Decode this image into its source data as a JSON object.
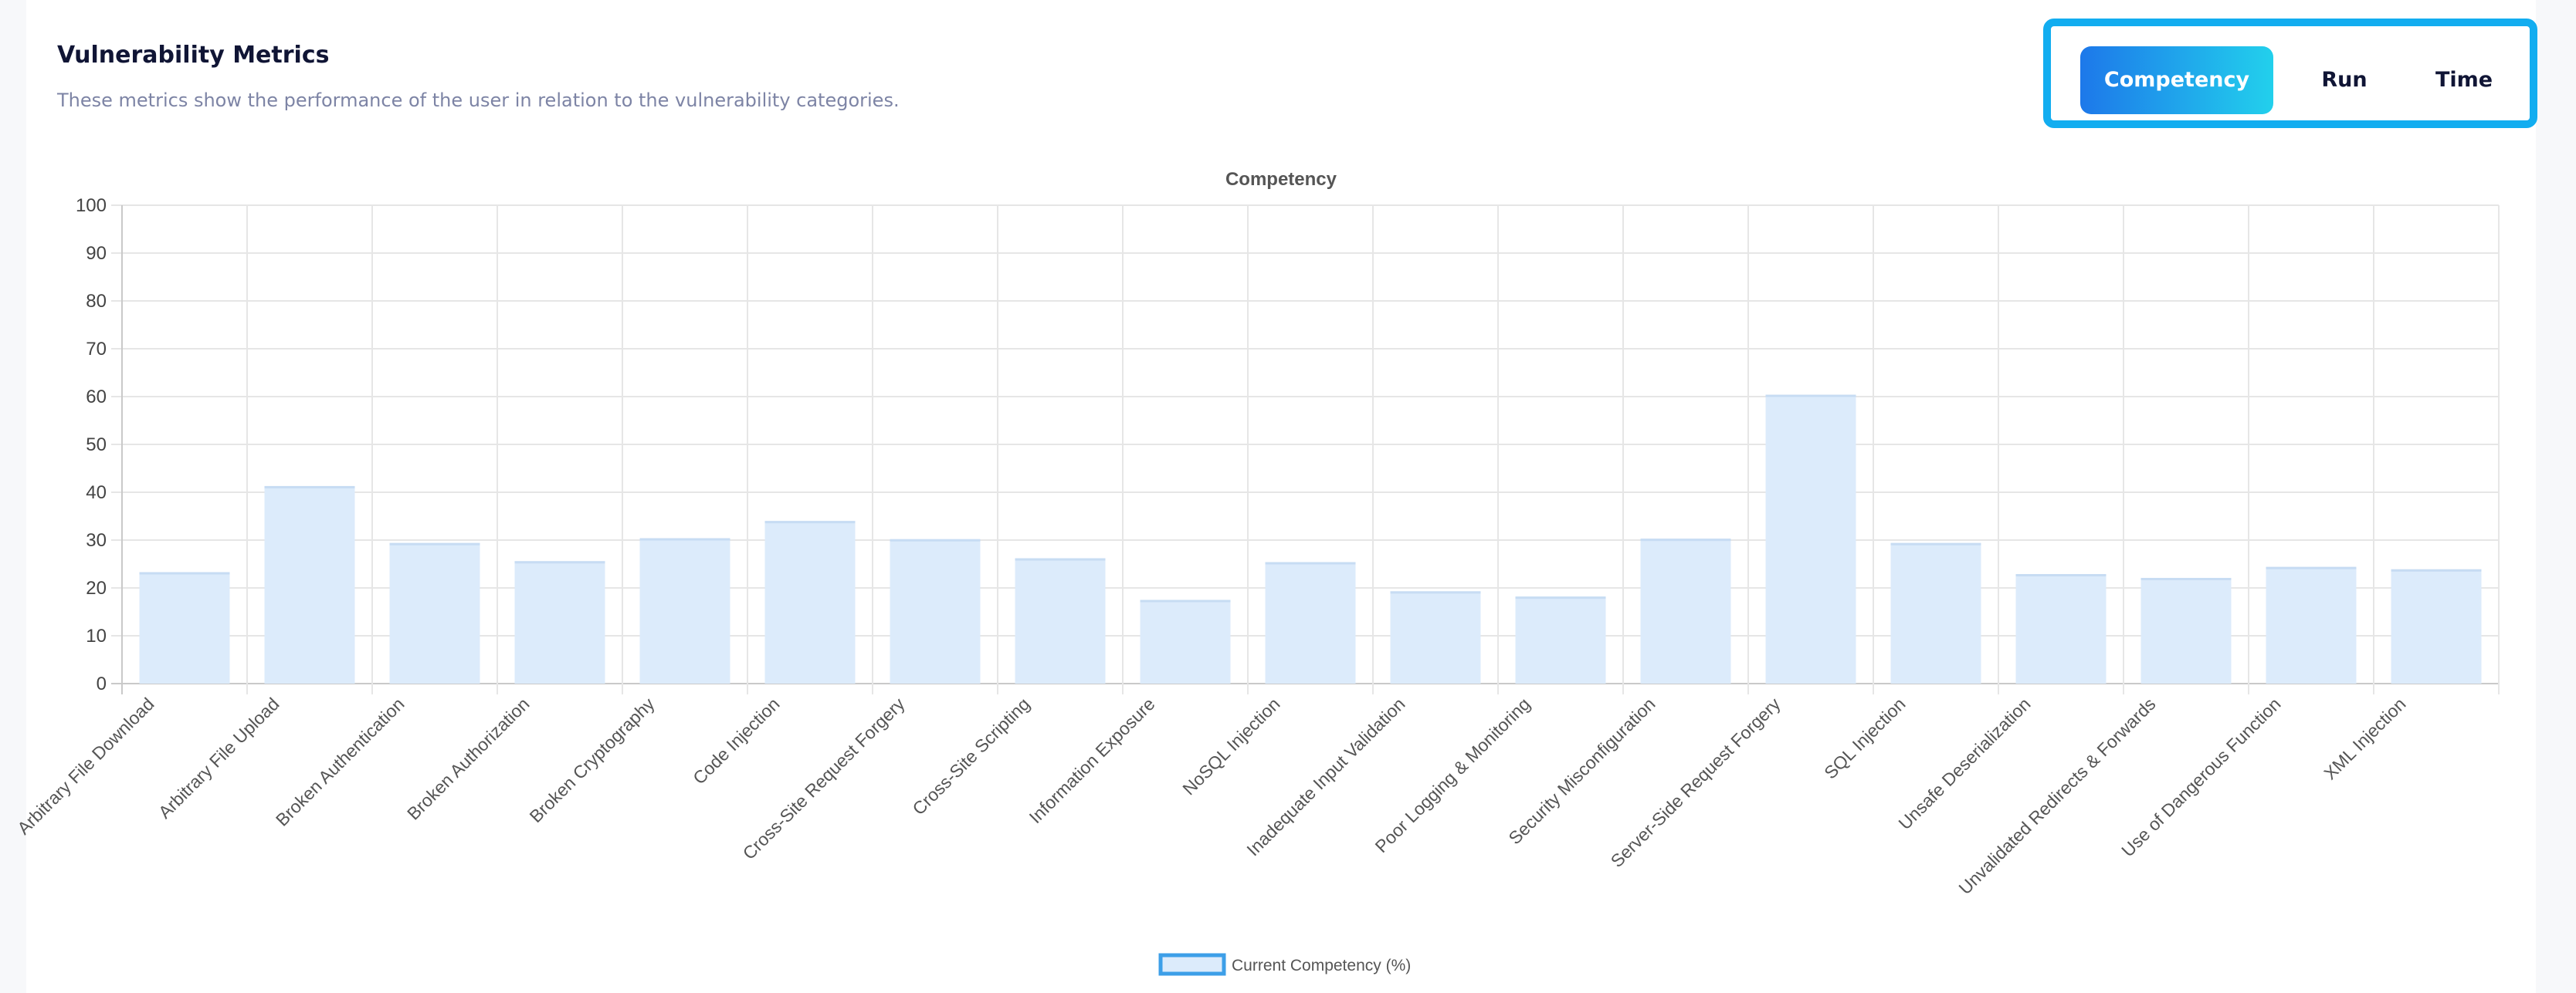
{
  "header": {
    "title": "Vulnerability Metrics",
    "subtitle": "These metrics show the performance of the user in relation to the vulnerability categories."
  },
  "toggle": {
    "options": [
      "Competency",
      "Run",
      "Time"
    ],
    "active": "Competency"
  },
  "colors": {
    "bar_fill": "#dcebfb",
    "legend_border": "#3d9fe8",
    "toggle_border": "#12adf0",
    "gradient_start": "#1d78ea",
    "gradient_end": "#22d0ec"
  },
  "chart_data": {
    "type": "bar",
    "title": "Competency",
    "xlabel": "",
    "ylabel": "",
    "ylim": [
      0,
      100
    ],
    "yticks": [
      0,
      10,
      20,
      30,
      40,
      50,
      60,
      70,
      80,
      90,
      100
    ],
    "grid": true,
    "legend_position": "bottom-center",
    "categories": [
      "Arbitrary File Download",
      "Arbitrary File Upload",
      "Broken Authentication",
      "Broken Authorization",
      "Broken Cryptography",
      "Code Injection",
      "Cross-Site Request Forgery",
      "Cross-Site Scripting",
      "Information Exposure",
      "NoSQL Injection",
      "Inadequate Input Validation",
      "Poor Logging & Monitoring",
      "Security Misconfiguration",
      "Server-Side Request Forgery",
      "SQL Injection",
      "Unsafe Deserialization",
      "Unvalidated Redirects & Forwards",
      "Use of Dangerous Function",
      "XML Injection"
    ],
    "series": [
      {
        "name": "Current Competency (%)",
        "values": [
          23.3,
          41.3,
          29.4,
          25.6,
          30.4,
          34.0,
          30.2,
          26.2,
          17.5,
          25.4,
          19.3,
          18.2,
          30.3,
          60.4,
          29.4,
          22.9,
          22.1,
          24.4,
          23.9
        ]
      }
    ]
  }
}
